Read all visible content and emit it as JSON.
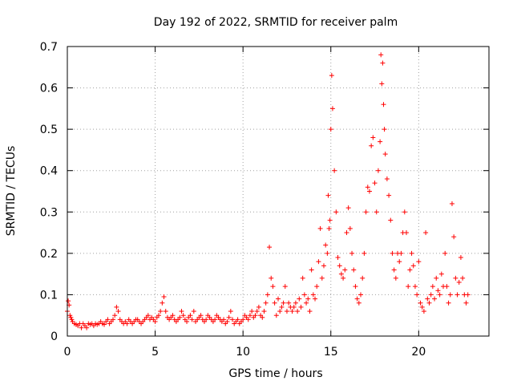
{
  "chart_data": {
    "type": "scatter",
    "title": "Day 192 of 2022, SRMTID for receiver palm",
    "xlabel": "GPS time / hours",
    "ylabel": "SRMTID / TECUs",
    "xlim": [
      0,
      24
    ],
    "ylim": [
      0,
      0.7
    ],
    "x_ticks": [
      0,
      5,
      10,
      15,
      20
    ],
    "x_tick_labels": [
      "0",
      "5",
      "10",
      "15",
      "20"
    ],
    "y_ticks": [
      0,
      0.1,
      0.2,
      0.3,
      0.4,
      0.5,
      0.6,
      0.7
    ],
    "y_tick_labels": [
      "0",
      "0.1",
      "0.2",
      "0.3",
      "0.4",
      "0.5",
      "0.6",
      "0.7"
    ],
    "grid": true,
    "marker": "plus",
    "marker_color": "#ff0000",
    "series": [
      {
        "name": "SRMTID",
        "x": [
          0.0,
          0.05,
          0.1,
          0.15,
          0.2,
          0.25,
          0.3,
          0.4,
          0.5,
          0.6,
          0.7,
          0.8,
          0.9,
          1.0,
          1.1,
          1.2,
          1.3,
          1.4,
          1.5,
          1.6,
          1.7,
          1.8,
          1.9,
          2.0,
          2.1,
          2.2,
          2.3,
          2.4,
          2.5,
          2.6,
          2.7,
          2.8,
          2.9,
          3.0,
          3.1,
          3.2,
          3.3,
          3.4,
          3.5,
          3.6,
          3.7,
          3.8,
          3.9,
          4.0,
          4.1,
          4.2,
          4.3,
          4.4,
          4.5,
          4.6,
          4.7,
          4.8,
          4.9,
          5.0,
          5.1,
          5.2,
          5.3,
          5.4,
          5.5,
          5.6,
          5.7,
          5.8,
          5.9,
          6.0,
          6.1,
          6.2,
          6.3,
          6.4,
          6.5,
          6.6,
          6.7,
          6.8,
          6.9,
          7.0,
          7.1,
          7.2,
          7.3,
          7.4,
          7.5,
          7.6,
          7.7,
          7.8,
          7.9,
          8.0,
          8.1,
          8.2,
          8.3,
          8.4,
          8.5,
          8.6,
          8.7,
          8.8,
          8.9,
          9.0,
          9.1,
          9.2,
          9.3,
          9.4,
          9.5,
          9.6,
          9.7,
          9.8,
          9.9,
          10.0,
          10.1,
          10.2,
          10.3,
          10.4,
          10.5,
          10.6,
          10.7,
          10.8,
          10.9,
          11.0,
          11.1,
          11.2,
          11.3,
          11.4,
          11.5,
          11.6,
          11.7,
          11.8,
          11.9,
          12.0,
          12.1,
          12.2,
          12.3,
          12.4,
          12.5,
          12.6,
          12.7,
          12.8,
          12.9,
          13.0,
          13.1,
          13.2,
          13.3,
          13.4,
          13.5,
          13.6,
          13.7,
          13.8,
          13.9,
          14.0,
          14.1,
          14.2,
          14.3,
          14.4,
          14.5,
          14.6,
          14.7,
          14.8,
          14.85,
          14.9,
          14.95,
          15.0,
          15.05,
          15.1,
          15.2,
          15.3,
          15.4,
          15.5,
          15.6,
          15.7,
          15.8,
          15.9,
          16.0,
          16.1,
          16.2,
          16.3,
          16.4,
          16.5,
          16.6,
          16.7,
          16.8,
          16.9,
          17.0,
          17.1,
          17.2,
          17.3,
          17.4,
          17.5,
          17.6,
          17.7,
          17.8,
          17.85,
          17.9,
          17.95,
          18.0,
          18.05,
          18.1,
          18.2,
          18.3,
          18.4,
          18.5,
          18.6,
          18.7,
          18.8,
          18.9,
          19.0,
          19.1,
          19.2,
          19.3,
          19.4,
          19.5,
          19.6,
          19.7,
          19.8,
          19.9,
          20.0,
          20.1,
          20.2,
          20.3,
          20.4,
          20.5,
          20.6,
          20.7,
          20.8,
          20.9,
          21.0,
          21.1,
          21.2,
          21.3,
          21.4,
          21.5,
          21.6,
          21.7,
          21.8,
          21.9,
          22.0,
          22.1,
          22.2,
          22.3,
          22.4,
          22.5,
          22.6,
          22.7,
          22.8
        ],
        "y": [
          0.06,
          0.085,
          0.075,
          0.05,
          0.045,
          0.04,
          0.035,
          0.03,
          0.028,
          0.025,
          0.03,
          0.02,
          0.03,
          0.025,
          0.02,
          0.03,
          0.028,
          0.03,
          0.025,
          0.03,
          0.028,
          0.03,
          0.035,
          0.03,
          0.028,
          0.035,
          0.04,
          0.03,
          0.035,
          0.04,
          0.05,
          0.07,
          0.06,
          0.04,
          0.035,
          0.03,
          0.035,
          0.03,
          0.04,
          0.035,
          0.03,
          0.035,
          0.04,
          0.04,
          0.035,
          0.03,
          0.035,
          0.04,
          0.045,
          0.05,
          0.04,
          0.045,
          0.04,
          0.035,
          0.045,
          0.05,
          0.06,
          0.08,
          0.095,
          0.06,
          0.045,
          0.04,
          0.045,
          0.05,
          0.04,
          0.035,
          0.04,
          0.045,
          0.06,
          0.05,
          0.04,
          0.035,
          0.045,
          0.05,
          0.04,
          0.06,
          0.035,
          0.04,
          0.045,
          0.05,
          0.04,
          0.035,
          0.04,
          0.05,
          0.045,
          0.04,
          0.035,
          0.04,
          0.05,
          0.045,
          0.04,
          0.035,
          0.04,
          0.03,
          0.035,
          0.045,
          0.06,
          0.04,
          0.03,
          0.035,
          0.04,
          0.03,
          0.035,
          0.04,
          0.05,
          0.045,
          0.04,
          0.05,
          0.06,
          0.045,
          0.05,
          0.06,
          0.07,
          0.05,
          0.045,
          0.06,
          0.08,
          0.1,
          0.215,
          0.14,
          0.12,
          0.08,
          0.05,
          0.09,
          0.06,
          0.07,
          0.08,
          0.12,
          0.06,
          0.08,
          0.07,
          0.06,
          0.07,
          0.08,
          0.06,
          0.09,
          0.07,
          0.14,
          0.1,
          0.08,
          0.09,
          0.06,
          0.16,
          0.1,
          0.09,
          0.12,
          0.18,
          0.26,
          0.14,
          0.17,
          0.22,
          0.2,
          0.34,
          0.26,
          0.28,
          0.5,
          0.63,
          0.55,
          0.4,
          0.3,
          0.19,
          0.17,
          0.15,
          0.14,
          0.16,
          0.25,
          0.31,
          0.26,
          0.2,
          0.16,
          0.12,
          0.09,
          0.08,
          0.1,
          0.14,
          0.2,
          0.3,
          0.36,
          0.35,
          0.46,
          0.48,
          0.37,
          0.3,
          0.4,
          0.47,
          0.68,
          0.61,
          0.66,
          0.56,
          0.5,
          0.44,
          0.38,
          0.34,
          0.28,
          0.2,
          0.16,
          0.14,
          0.2,
          0.18,
          0.2,
          0.25,
          0.3,
          0.25,
          0.12,
          0.16,
          0.2,
          0.17,
          0.12,
          0.1,
          0.18,
          0.08,
          0.07,
          0.06,
          0.25,
          0.09,
          0.08,
          0.1,
          0.12,
          0.09,
          0.14,
          0.11,
          0.1,
          0.15,
          0.12,
          0.2,
          0.12,
          0.08,
          0.1,
          0.32,
          0.24,
          0.14,
          0.1,
          0.13,
          0.19,
          0.14,
          0.1,
          0.08,
          0.1
        ]
      }
    ]
  }
}
